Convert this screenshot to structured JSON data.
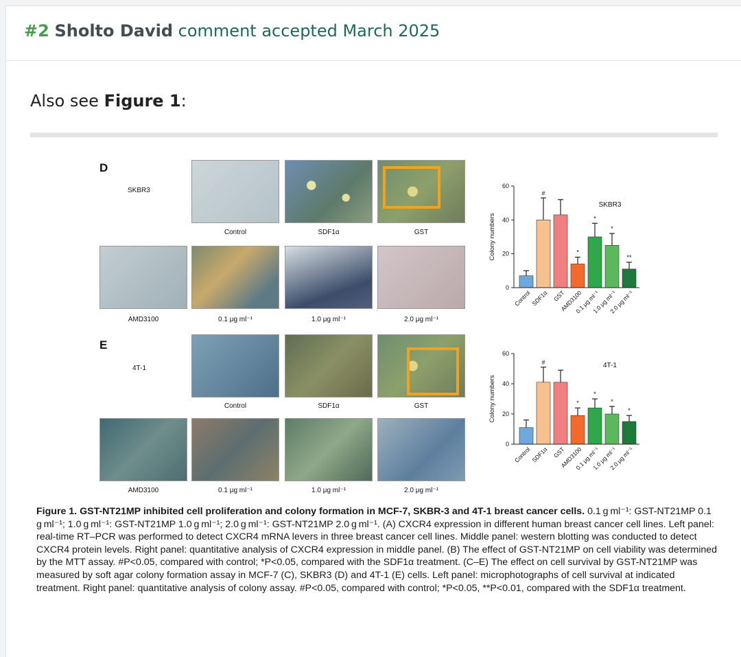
{
  "header": {
    "number": "#2",
    "author": "Sholto David",
    "status": "comment accepted March 2025"
  },
  "body": {
    "see_prefix": "Also see ",
    "see_link": "Figure 1",
    "see_suffix": ":"
  },
  "figure": {
    "panel_d": {
      "letter": "D",
      "cell_line": "SKBR3",
      "top_labels": [
        "Control",
        "SDF1α",
        "GST"
      ],
      "bottom_labels": [
        "AMD3100",
        "0.1 μg ml⁻¹",
        "1.0 μg ml⁻¹",
        "2.0 μg ml⁻¹"
      ]
    },
    "panel_e": {
      "letter": "E",
      "cell_line": "4T-1",
      "top_labels": [
        "Control",
        "SDF1α",
        "GST"
      ],
      "bottom_labels": [
        "AMD3100",
        "0.1 μg ml⁻¹",
        "1.0 μg ml⁻¹",
        "2.0 μg ml⁻¹"
      ]
    }
  },
  "chart_data": [
    {
      "type": "bar",
      "title": "SKBR3",
      "ylabel": "Colony numbers",
      "ylim": [
        0,
        60
      ],
      "yticks": [
        0,
        20,
        40,
        60
      ],
      "categories": [
        "Control",
        "SDF1α",
        "GST",
        "AMD3100",
        "0.1 μg ml⁻¹",
        "1.0 μg ml⁻¹",
        "2.0 μg ml⁻¹"
      ],
      "values": [
        7,
        40,
        43,
        14,
        30,
        25,
        11
      ],
      "errors": [
        3,
        13,
        9,
        4,
        8,
        7,
        4
      ],
      "annotations": [
        "",
        "#",
        "",
        "*",
        "*",
        "*",
        "**"
      ],
      "colors": [
        "#6fa8dc",
        "#f7c18f",
        "#f08080",
        "#f26b2d",
        "#2ea84a",
        "#5cb85c",
        "#1e7a3a"
      ]
    },
    {
      "type": "bar",
      "title": "4T-1",
      "ylabel": "Colony numbers",
      "ylim": [
        0,
        60
      ],
      "yticks": [
        0,
        20,
        40,
        60
      ],
      "categories": [
        "Control",
        "SDF1α",
        "GST",
        "AMD3100",
        "0.1 μg ml⁻¹",
        "1.0 μg ml⁻¹",
        "2.0 μg ml⁻¹"
      ],
      "values": [
        11,
        41,
        41,
        19,
        24,
        20,
        15
      ],
      "errors": [
        5,
        10,
        8,
        5,
        6,
        5,
        4
      ],
      "annotations": [
        "",
        "#",
        "",
        "*",
        "*",
        "*",
        "*"
      ],
      "colors": [
        "#6fa8dc",
        "#f7c18f",
        "#f08080",
        "#f26b2d",
        "#2ea84a",
        "#5cb85c",
        "#1e7a3a"
      ]
    }
  ],
  "caption": {
    "bold_lead": "Figure 1. GST-NT21MP inhibited cell proliferation and colony formation in MCF-7, SKBR-3 and 4T-1 breast cancer cells.",
    "text": " 0.1 g ml⁻¹: GST-NT21MP 0.1 g ml⁻¹; 1.0 g ml⁻¹: GST-NT21MP 1.0 g ml⁻¹; 2.0 g ml⁻¹: GST-NT21MP 2.0 g ml⁻¹. (A) CXCR4 expression in different human breast cancer cell lines. Left panel: real-time RT–PCR was performed to detect CXCR4 mRNA levers in three breast cancer cell lines. Middle panel: western blotting was conducted to detect CXCR4 protein levels. Right panel: quantitative analysis of CXCR4 expression in middle panel. (B) The effect of GST-NT21MP on cell viability was determined by the MTT assay. #P<0.05, compared with control; *P<0.05, compared with the SDF1α treatment. (C–E) The effect on cell survival by GST-NT21MP was measured by soft agar colony formation assay in MCF-7 (C), SKBR3 (D) and 4T-1 (E) cells. Left panel: microphotographs of cell survival at indicated treatment. Right panel: quantitative analysis of colony assay. #P<0.05, compared with control; *P<0.05, **P<0.01, compared with the SDF1α treatment."
  }
}
